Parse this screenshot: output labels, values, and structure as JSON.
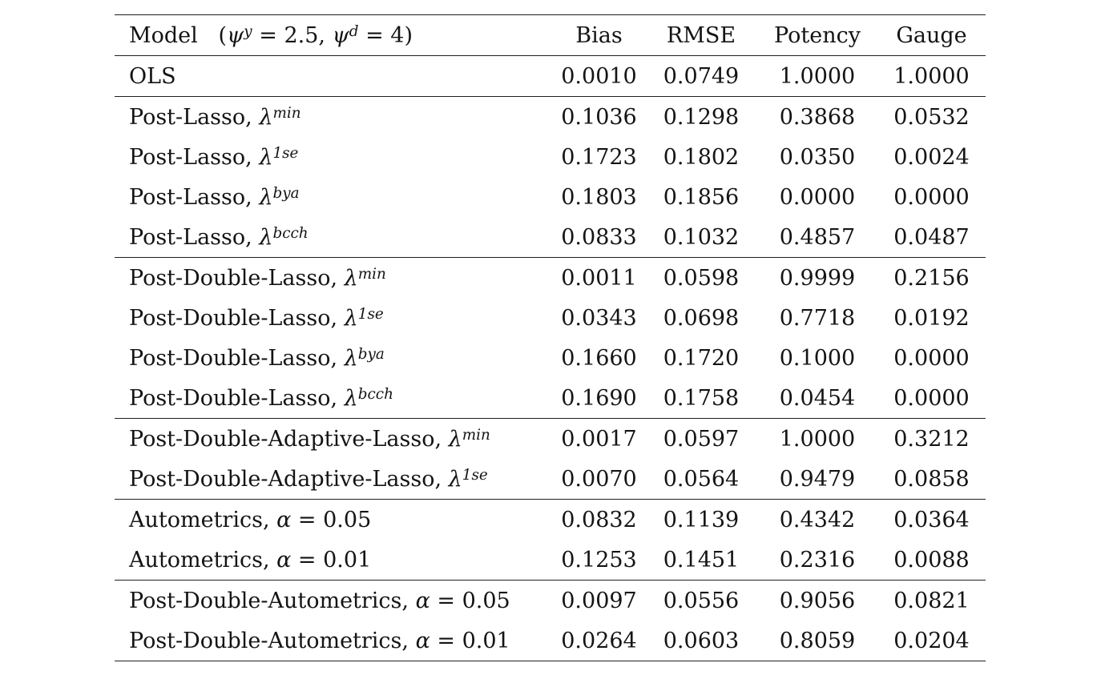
{
  "table": {
    "header": {
      "model_label": [
        [
          "Model",
          "r"
        ],
        [
          "   (",
          "r"
        ],
        [
          "ψ",
          "i"
        ],
        [
          "y",
          "sup"
        ],
        [
          " = 2.5, ",
          "r"
        ],
        [
          "ψ",
          "i"
        ],
        [
          "d",
          "sup"
        ],
        [
          " = 4)",
          "r"
        ]
      ],
      "columns": [
        "Bias",
        "RMSE",
        "Potency",
        "Gauge"
      ]
    },
    "groups": [
      {
        "name": "ols",
        "rows": [
          {
            "label": [
              [
                "OLS",
                "r"
              ]
            ],
            "values": [
              "0.0010",
              "0.0749",
              "1.0000",
              "1.0000"
            ]
          }
        ]
      },
      {
        "name": "post-lasso",
        "rows": [
          {
            "label": [
              [
                "Post-Lasso, ",
                "r"
              ],
              [
                "λ",
                "i"
              ],
              [
                "min",
                "sup"
              ]
            ],
            "values": [
              "0.1036",
              "0.1298",
              "0.3868",
              "0.0532"
            ]
          },
          {
            "label": [
              [
                "Post-Lasso, ",
                "r"
              ],
              [
                "λ",
                "i"
              ],
              [
                "1se",
                "sup"
              ]
            ],
            "values": [
              "0.1723",
              "0.1802",
              "0.0350",
              "0.0024"
            ]
          },
          {
            "label": [
              [
                "Post-Lasso, ",
                "r"
              ],
              [
                "λ",
                "i"
              ],
              [
                "bya",
                "sup"
              ]
            ],
            "values": [
              "0.1803",
              "0.1856",
              "0.0000",
              "0.0000"
            ]
          },
          {
            "label": [
              [
                "Post-Lasso, ",
                "r"
              ],
              [
                "λ",
                "i"
              ],
              [
                "bcch",
                "sup"
              ]
            ],
            "values": [
              "0.0833",
              "0.1032",
              "0.4857",
              "0.0487"
            ]
          }
        ]
      },
      {
        "name": "post-double-lasso",
        "rows": [
          {
            "label": [
              [
                "Post-Double-Lasso, ",
                "r"
              ],
              [
                "λ",
                "i"
              ],
              [
                "min",
                "sup"
              ]
            ],
            "values": [
              "0.0011",
              "0.0598",
              "0.9999",
              "0.2156"
            ]
          },
          {
            "label": [
              [
                "Post-Double-Lasso, ",
                "r"
              ],
              [
                "λ",
                "i"
              ],
              [
                "1se",
                "sup"
              ]
            ],
            "values": [
              "0.0343",
              "0.0698",
              "0.7718",
              "0.0192"
            ]
          },
          {
            "label": [
              [
                "Post-Double-Lasso, ",
                "r"
              ],
              [
                "λ",
                "i"
              ],
              [
                "bya",
                "sup"
              ]
            ],
            "values": [
              "0.1660",
              "0.1720",
              "0.1000",
              "0.0000"
            ]
          },
          {
            "label": [
              [
                "Post-Double-Lasso, ",
                "r"
              ],
              [
                "λ",
                "i"
              ],
              [
                "bcch",
                "sup"
              ]
            ],
            "values": [
              "0.1690",
              "0.1758",
              "0.0454",
              "0.0000"
            ]
          }
        ]
      },
      {
        "name": "post-double-adaptive-lasso",
        "rows": [
          {
            "label": [
              [
                "Post-Double-Adaptive-Lasso, ",
                "r"
              ],
              [
                "λ",
                "i"
              ],
              [
                "min",
                "sup"
              ]
            ],
            "values": [
              "0.0017",
              "0.0597",
              "1.0000",
              "0.3212"
            ]
          },
          {
            "label": [
              [
                "Post-Double-Adaptive-Lasso, ",
                "r"
              ],
              [
                "λ",
                "i"
              ],
              [
                "1se",
                "sup"
              ]
            ],
            "values": [
              "0.0070",
              "0.0564",
              "0.9479",
              "0.0858"
            ]
          }
        ]
      },
      {
        "name": "autometrics",
        "rows": [
          {
            "label": [
              [
                "Autometrics, ",
                "r"
              ],
              [
                "α",
                "i"
              ],
              [
                " = 0.05",
                "r"
              ]
            ],
            "values": [
              "0.0832",
              "0.1139",
              "0.4342",
              "0.0364"
            ]
          },
          {
            "label": [
              [
                "Autometrics, ",
                "r"
              ],
              [
                "α",
                "i"
              ],
              [
                " = 0.01",
                "r"
              ]
            ],
            "values": [
              "0.1253",
              "0.1451",
              "0.2316",
              "0.0088"
            ]
          }
        ]
      },
      {
        "name": "post-double-autometrics",
        "rows": [
          {
            "label": [
              [
                "Post-Double-Autometrics, ",
                "r"
              ],
              [
                "α",
                "i"
              ],
              [
                " = 0.05",
                "r"
              ]
            ],
            "values": [
              "0.0097",
              "0.0556",
              "0.9056",
              "0.0821"
            ]
          },
          {
            "label": [
              [
                "Post-Double-Autometrics, ",
                "r"
              ],
              [
                "α",
                "i"
              ],
              [
                " = 0.01",
                "r"
              ]
            ],
            "values": [
              "0.0264",
              "0.0603",
              "0.8059",
              "0.0204"
            ]
          }
        ]
      }
    ]
  }
}
